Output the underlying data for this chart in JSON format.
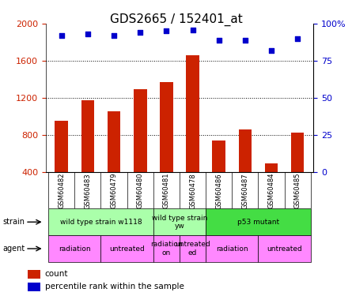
{
  "title": "GDS2665 / 152401_at",
  "samples": [
    "GSM60482",
    "GSM60483",
    "GSM60479",
    "GSM60480",
    "GSM60481",
    "GSM60478",
    "GSM60486",
    "GSM60487",
    "GSM60484",
    "GSM60485"
  ],
  "counts": [
    950,
    1175,
    1050,
    1290,
    1370,
    1660,
    740,
    860,
    490,
    820
  ],
  "percentiles": [
    92,
    93,
    92,
    94,
    95,
    96,
    89,
    89,
    82,
    90
  ],
  "bar_color": "#cc2200",
  "dot_color": "#0000cc",
  "ylim_left": [
    400,
    2000
  ],
  "ylim_right": [
    0,
    100
  ],
  "yticks_left": [
    400,
    800,
    1200,
    1600,
    2000
  ],
  "yticks_right": [
    0,
    25,
    50,
    75,
    100
  ],
  "strain_groups": [
    {
      "label": "wild type strain w1118",
      "start": 0,
      "end": 4,
      "color": "#aaffaa"
    },
    {
      "label": "wild type strain\nyw",
      "start": 4,
      "end": 6,
      "color": "#aaffaa"
    },
    {
      "label": "p53 mutant",
      "start": 6,
      "end": 10,
      "color": "#44dd44"
    }
  ],
  "agent_groups": [
    {
      "label": "radiation",
      "start": 0,
      "end": 2,
      "color": "#ff88ff"
    },
    {
      "label": "untreated",
      "start": 2,
      "end": 4,
      "color": "#ff88ff"
    },
    {
      "label": "radiation\non",
      "start": 4,
      "end": 5,
      "color": "#ff88ff"
    },
    {
      "label": "untreated\ned",
      "start": 5,
      "end": 6,
      "color": "#ff88ff"
    },
    {
      "label": "radiation",
      "start": 6,
      "end": 8,
      "color": "#ff88ff"
    },
    {
      "label": "untreated",
      "start": 8,
      "end": 10,
      "color": "#ff88ff"
    }
  ],
  "background_color": "#ffffff",
  "title_fontsize": 11,
  "tick_fontsize": 8,
  "label_fontsize": 8
}
